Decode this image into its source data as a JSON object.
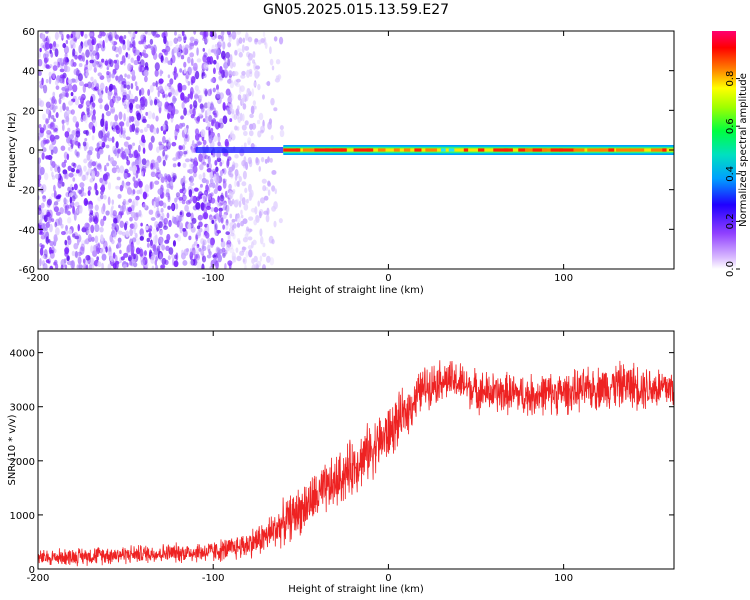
{
  "title": "GN05.2025.015.13.59.E27",
  "chart_data": [
    {
      "type": "heatmap",
      "ylabel": "Frequency (Hz)",
      "xlabel": "Height of straight line (km)",
      "xlim": [
        -200,
        163
      ],
      "ylim": [
        -60,
        60
      ],
      "xticks": [
        -200,
        -100,
        0,
        100
      ],
      "yticks": [
        -60,
        -40,
        -20,
        0,
        20,
        40,
        60
      ],
      "colorbar": {
        "label": "Normalized spectral amplitude",
        "range": [
          0,
          1
        ],
        "ticks": [
          "0.0",
          "0.2",
          "0.4",
          "0.6",
          "0.8"
        ],
        "colors": [
          "#ffffff",
          "#b07cff",
          "#7a00ff",
          "#0000ff",
          "#00c0ff",
          "#00ff80",
          "#a0ff00",
          "#ffff00",
          "#ff8000",
          "#ff0000",
          "#ff0090"
        ]
      },
      "features": {
        "noise_region_x": [
          -200,
          -70
        ],
        "noise_fade_x": [
          -90,
          -60
        ],
        "signal_band_center_hz": 0,
        "signal_band_x": [
          -110,
          163
        ],
        "signal_strong_start_x": -60
      }
    },
    {
      "type": "line",
      "ylabel": "SNR (10 * v/v)",
      "xlabel": "Height of straight line (km)",
      "xlim": [
        -200,
        163
      ],
      "ylim": [
        0,
        4400
      ],
      "xticks": [
        -200,
        -100,
        0,
        100
      ],
      "yticks": [
        0,
        1000,
        2000,
        3000,
        4000
      ],
      "series": [
        {
          "color": "#ee2222",
          "x": [
            -200,
            -180,
            -160,
            -140,
            -120,
            -100,
            -90,
            -80,
            -70,
            -60,
            -50,
            -40,
            -30,
            -20,
            -10,
            0,
            10,
            20,
            30,
            40,
            50,
            60,
            70,
            80,
            90,
            100,
            110,
            120,
            130,
            140,
            150,
            163
          ],
          "mean": [
            200,
            230,
            260,
            280,
            300,
            320,
            370,
            460,
            600,
            850,
            1100,
            1350,
            1600,
            1900,
            2200,
            2500,
            2900,
            3350,
            3500,
            3450,
            3300,
            3250,
            3250,
            3200,
            3250,
            3250,
            3300,
            3350,
            3400,
            3400,
            3350,
            3350
          ],
          "spread": [
            150,
            160,
            170,
            170,
            180,
            200,
            220,
            260,
            320,
            400,
            450,
            480,
            500,
            520,
            520,
            520,
            450,
            400,
            380,
            380,
            380,
            380,
            380,
            380,
            380,
            380,
            380,
            400,
            420,
            420,
            420,
            400
          ]
        }
      ]
    }
  ]
}
